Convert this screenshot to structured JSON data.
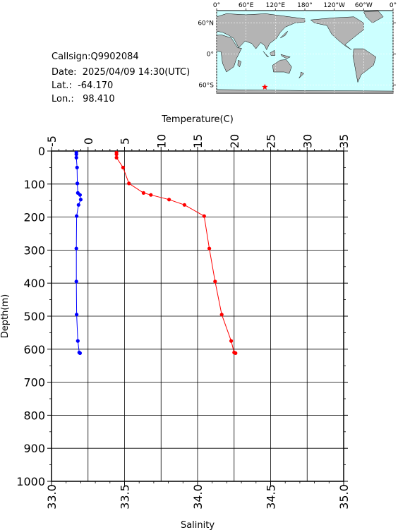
{
  "info": {
    "callsign": "Callsign:Q9902084",
    "date": "Date:  2025/04/09 14:30(UTC)",
    "lat": "Lat.:  -64.170",
    "lon": "Lon.:   98.410"
  },
  "map": {
    "lon_labels": [
      "0°",
      "60°E",
      "120°E",
      "180°",
      "120°W",
      "60°W",
      "0°"
    ],
    "lat_labels": [
      "60°N",
      "0°",
      "60°S"
    ],
    "marker": {
      "lat": -64.17,
      "lon": 98.41,
      "color": "#ff0000"
    },
    "colors": {
      "ocean": "#ccffff",
      "land": "#b4b4b4"
    }
  },
  "chart_data": {
    "type": "line",
    "ylabel": "Depth(m)",
    "y_ticks": [
      0,
      100,
      200,
      300,
      400,
      500,
      600,
      700,
      800,
      900,
      1000
    ],
    "ylim": [
      1000,
      0
    ],
    "grid": true,
    "top_axis": {
      "label": "Temperature(C)",
      "range": [
        -5,
        35
      ],
      "ticks": [
        -5,
        0,
        5,
        10,
        15,
        20,
        25,
        30,
        35
      ]
    },
    "bottom_axis": {
      "label": "Salinity",
      "range": [
        33.0,
        35.0
      ],
      "ticks": [
        "33.0",
        "33.5",
        "34.0",
        "34.5",
        "35.0"
      ]
    },
    "series": [
      {
        "axis": "temperature",
        "color": "#ff0000",
        "points": [
          {
            "x": 3.9,
            "y": 5
          },
          {
            "x": 3.9,
            "y": 10
          },
          {
            "x": 3.9,
            "y": 20
          },
          {
            "x": 4.8,
            "y": 50
          },
          {
            "x": 5.6,
            "y": 98
          },
          {
            "x": 7.6,
            "y": 127
          },
          {
            "x": 8.6,
            "y": 133
          },
          {
            "x": 11.1,
            "y": 147
          },
          {
            "x": 13.2,
            "y": 163
          },
          {
            "x": 15.9,
            "y": 197
          },
          {
            "x": 16.6,
            "y": 295
          },
          {
            "x": 17.4,
            "y": 395
          },
          {
            "x": 18.3,
            "y": 495
          },
          {
            "x": 19.6,
            "y": 575
          },
          {
            "x": 20.0,
            "y": 610
          },
          {
            "x": 20.2,
            "y": 612
          }
        ]
      },
      {
        "axis": "salinity",
        "color": "#0000ff",
        "points": [
          {
            "x": 33.17,
            "y": 5
          },
          {
            "x": 33.17,
            "y": 10
          },
          {
            "x": 33.17,
            "y": 20
          },
          {
            "x": 33.175,
            "y": 50
          },
          {
            "x": 33.177,
            "y": 98
          },
          {
            "x": 33.18,
            "y": 127
          },
          {
            "x": 33.195,
            "y": 133
          },
          {
            "x": 33.2,
            "y": 147
          },
          {
            "x": 33.185,
            "y": 163
          },
          {
            "x": 33.172,
            "y": 197
          },
          {
            "x": 33.17,
            "y": 295
          },
          {
            "x": 33.17,
            "y": 395
          },
          {
            "x": 33.172,
            "y": 495
          },
          {
            "x": 33.18,
            "y": 575
          },
          {
            "x": 33.19,
            "y": 610
          },
          {
            "x": 33.195,
            "y": 612
          }
        ]
      }
    ]
  }
}
